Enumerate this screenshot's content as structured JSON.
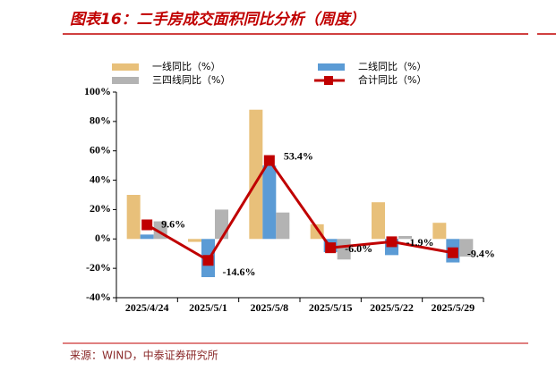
{
  "chart_data": {
    "type": "bar",
    "title": "图表16：二手房成交面积同比分析（周度）",
    "source": "来源：WIND，中泰证券研究所",
    "categories": [
      "2025/4/24",
      "2025/5/1",
      "2025/5/8",
      "2025/5/15",
      "2025/5/22",
      "2025/5/29"
    ],
    "series": [
      {
        "name": "一线同比（%）",
        "color": "#e8c07a",
        "values": [
          30,
          -2,
          88,
          10,
          25,
          11
        ]
      },
      {
        "name": "二线同比（%）",
        "color": "#5b9bd5",
        "values": [
          3,
          -26,
          50,
          -9,
          -11,
          -16
        ]
      },
      {
        "name": "三四线同比（%）",
        "color": "#b3b3b3",
        "values": [
          12,
          20,
          18,
          -14,
          2,
          -12
        ]
      },
      {
        "name": "合计同比（%）",
        "color": "#c00000",
        "type": "line",
        "values": [
          9.6,
          -14.6,
          53.4,
          -6.0,
          -1.9,
          -9.4
        ],
        "value_labels": [
          "9.6%",
          "-14.6%",
          "53.4%",
          "-6.0%",
          "-1.9%",
          "-9.4%"
        ]
      }
    ],
    "ylim": [
      -40,
      100
    ],
    "yticks": [
      {
        "value": -40,
        "label": "-40%"
      },
      {
        "value": -20,
        "label": "-20%"
      },
      {
        "value": 0,
        "label": "0%"
      },
      {
        "value": 20,
        "label": "20%"
      },
      {
        "value": 40,
        "label": "40%"
      },
      {
        "value": 60,
        "label": "60%"
      },
      {
        "value": 80,
        "label": "80%"
      },
      {
        "value": 100,
        "label": "100%"
      }
    ]
  }
}
